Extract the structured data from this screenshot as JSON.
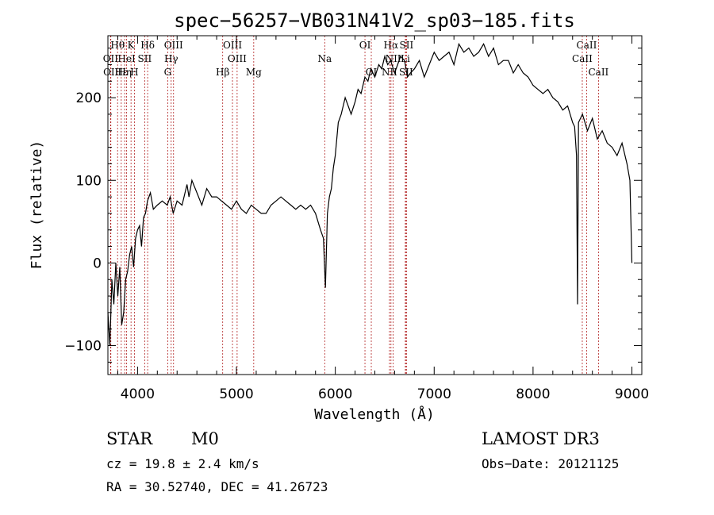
{
  "chart_data": {
    "type": "line",
    "title": "spec−56257−VB031N41V2_sp03−185.fits",
    "xlabel": "Wavelength (Å)",
    "ylabel": "Flux (relative)",
    "xlim": [
      3700,
      9100
    ],
    "ylim": [
      -135,
      275
    ],
    "xticks": [
      4000,
      5000,
      6000,
      7000,
      8000,
      9000
    ],
    "yticks": [
      -100,
      0,
      100,
      200
    ],
    "grid": false,
    "series": [
      {
        "x": [
          3700,
          3720,
          3740,
          3760,
          3780,
          3800,
          3820,
          3840,
          3860,
          3880,
          3900,
          3920,
          3940,
          3960,
          3980,
          4000,
          4020,
          4040,
          4060,
          4080,
          4100,
          4130,
          4160,
          4200,
          4250,
          4300,
          4330,
          4360,
          4400,
          4450,
          4500,
          4520,
          4550,
          4600,
          4650,
          4700,
          4750,
          4800,
          4850,
          4900,
          4950,
          5000,
          5050,
          5100,
          5150,
          5200,
          5250,
          5300,
          5350,
          5400,
          5450,
          5500,
          5550,
          5600,
          5650,
          5700,
          5750,
          5800,
          5850,
          5880,
          5900,
          5920,
          5940,
          5960,
          5980,
          6000,
          6030,
          6060,
          6100,
          6130,
          6160,
          6200,
          6230,
          6260,
          6300,
          6330,
          6360,
          6400,
          6440,
          6470,
          6500,
          6530,
          6560,
          6600,
          6630,
          6660,
          6700,
          6730,
          6760,
          6800,
          6850,
          6900,
          6950,
          7000,
          7050,
          7100,
          7150,
          7200,
          7250,
          7300,
          7350,
          7400,
          7450,
          7500,
          7550,
          7600,
          7650,
          7700,
          7750,
          7800,
          7850,
          7900,
          7950,
          8000,
          8050,
          8100,
          8150,
          8200,
          8250,
          8300,
          8350,
          8400,
          8420,
          8440,
          8450,
          8460,
          8480,
          8500,
          8550,
          8600,
          8650,
          8700,
          8750,
          8800,
          8850,
          8900,
          8950,
          8980,
          9000
        ],
        "values": [
          -60,
          -100,
          -20,
          -50,
          0,
          -40,
          -5,
          -75,
          -60,
          -20,
          -10,
          10,
          20,
          -5,
          30,
          40,
          45,
          20,
          55,
          60,
          75,
          85,
          65,
          70,
          75,
          70,
          80,
          60,
          75,
          70,
          95,
          80,
          100,
          85,
          70,
          90,
          80,
          80,
          75,
          70,
          65,
          75,
          65,
          60,
          70,
          65,
          60,
          60,
          70,
          75,
          80,
          75,
          70,
          65,
          70,
          65,
          70,
          60,
          40,
          30,
          -30,
          60,
          80,
          90,
          115,
          130,
          170,
          180,
          200,
          190,
          180,
          195,
          210,
          205,
          225,
          220,
          235,
          225,
          240,
          235,
          250,
          240,
          245,
          230,
          240,
          250,
          245,
          225,
          230,
          235,
          245,
          225,
          240,
          255,
          245,
          250,
          255,
          240,
          265,
          255,
          260,
          250,
          255,
          265,
          250,
          260,
          240,
          245,
          245,
          230,
          240,
          230,
          225,
          215,
          210,
          205,
          210,
          200,
          195,
          185,
          190,
          170,
          165,
          130,
          -50,
          170,
          175,
          180,
          160,
          175,
          150,
          160,
          145,
          140,
          130,
          145,
          120,
          100,
          0
        ]
      }
    ],
    "line_markers": [
      {
        "label": "Hθ",
        "x": 3798,
        "row": 1
      },
      {
        "label": "K",
        "x": 3934,
        "row": 1
      },
      {
        "label": "Hδ",
        "x": 4102,
        "row": 1
      },
      {
        "label": "OIII",
        "x": 4364,
        "row": 1
      },
      {
        "label": "OIII",
        "x": 4960,
        "row": 1
      },
      {
        "label": "OI",
        "x": 6300,
        "row": 1
      },
      {
        "label": "Hα",
        "x": 6563,
        "row": 1
      },
      {
        "label": "SII",
        "x": 6720,
        "row": 1
      },
      {
        "label": "CaII",
        "x": 8542,
        "row": 1
      },
      {
        "label": "OII",
        "x": 3727,
        "row": 2
      },
      {
        "label": "HeI",
        "x": 3889,
        "row": 2
      },
      {
        "label": "SII",
        "x": 4072,
        "row": 2
      },
      {
        "label": "Hγ",
        "x": 4340,
        "row": 2
      },
      {
        "label": "OIII",
        "x": 5007,
        "row": 2
      },
      {
        "label": "Na",
        "x": 5893,
        "row": 2
      },
      {
        "label": "NII",
        "x": 6585,
        "row": 2
      },
      {
        "label": "Li",
        "x": 6708,
        "row": 2
      },
      {
        "label": "CaII",
        "x": 8498,
        "row": 2
      },
      {
        "label": "OII",
        "x": 3730,
        "row": 3
      },
      {
        "label": "Hε",
        "x": 3835,
        "row": 3
      },
      {
        "label": "Hη",
        "x": 3870,
        "row": 3
      },
      {
        "label": "H",
        "x": 3968,
        "row": 3
      },
      {
        "label": "G",
        "x": 4305,
        "row": 3
      },
      {
        "label": "Hβ",
        "x": 4861,
        "row": 3
      },
      {
        "label": "Mg",
        "x": 5175,
        "row": 3
      },
      {
        "label": "OI",
        "x": 6364,
        "row": 3
      },
      {
        "label": "NII",
        "x": 6548,
        "row": 3
      },
      {
        "label": "SII",
        "x": 6716,
        "row": 3
      },
      {
        "label": "CaII",
        "x": 8662,
        "row": 3
      }
    ]
  },
  "info": {
    "object_class": "STAR",
    "subclass": "M0",
    "survey": "LAMOST DR3",
    "redshift": "cz = 19.8 ± 2.4 km/s",
    "obs_date": "Obs−Date: 20121125",
    "coords": "RA =  30.52740, DEC =  41.26723"
  }
}
